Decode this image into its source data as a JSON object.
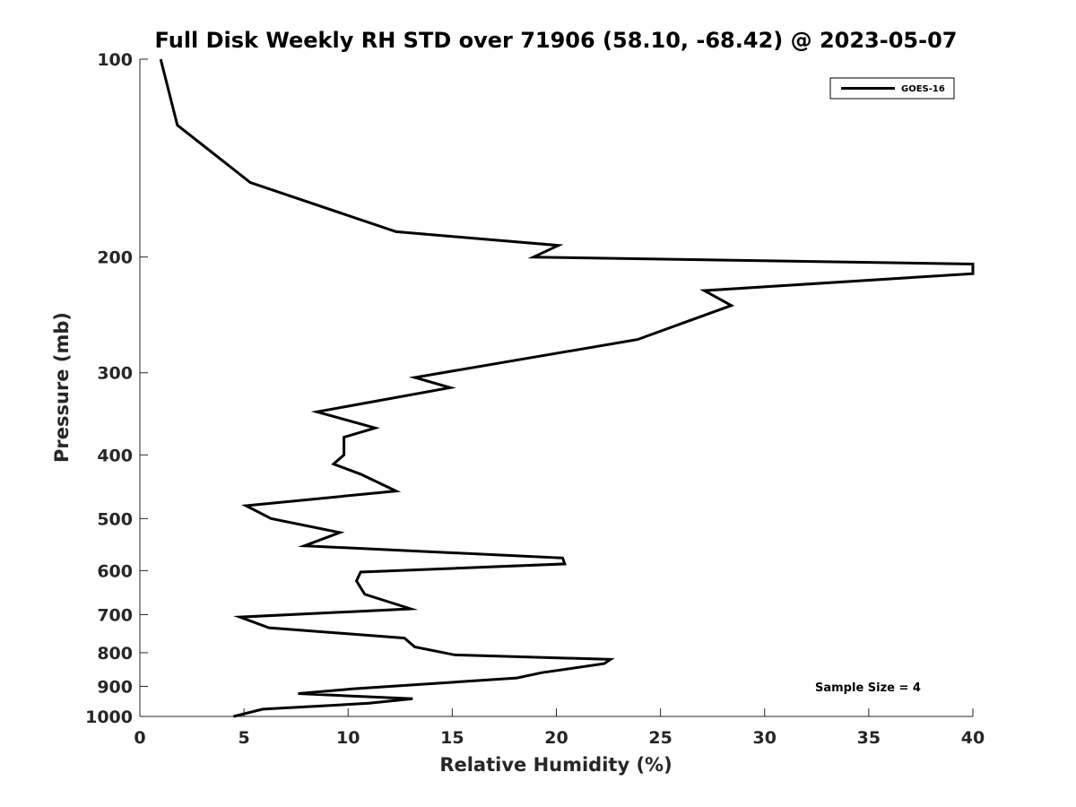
{
  "chart_data": {
    "type": "line",
    "title": "Full Disk Weekly RH STD over 71906 (58.10, -68.42) @ 2023-05-07",
    "xlabel": "Relative Humidity (%)",
    "ylabel": "Pressure (mb)",
    "xlim": [
      0,
      40
    ],
    "ylim": [
      100,
      1000
    ],
    "y_scale": "log",
    "y_reversed": true,
    "grid": false,
    "legend_position": "top-right",
    "x_ticks": [
      0,
      5,
      10,
      15,
      20,
      25,
      30,
      35,
      40
    ],
    "y_ticks": [
      100,
      200,
      300,
      400,
      500,
      600,
      700,
      800,
      900,
      1000
    ],
    "annotation": "Sample Size = 4",
    "series": [
      {
        "name": "GOES-16",
        "color": "#000000",
        "points": [
          [
            1.0,
            100
          ],
          [
            1.8,
            126
          ],
          [
            5.3,
            154
          ],
          [
            12.3,
            183
          ],
          [
            20.1,
            192
          ],
          [
            18.9,
            200
          ],
          [
            40.0,
            205
          ],
          [
            40.0,
            212
          ],
          [
            27.1,
            225
          ],
          [
            28.4,
            237
          ],
          [
            23.9,
            267
          ],
          [
            13.2,
            305
          ],
          [
            14.9,
            316
          ],
          [
            8.5,
            344
          ],
          [
            11.3,
            364
          ],
          [
            9.8,
            376
          ],
          [
            9.8,
            400
          ],
          [
            9.3,
            413
          ],
          [
            10.6,
            428
          ],
          [
            12.3,
            454
          ],
          [
            5.1,
            478
          ],
          [
            6.3,
            500
          ],
          [
            9.6,
            525
          ],
          [
            7.9,
            550
          ],
          [
            20.3,
            574
          ],
          [
            20.4,
            586
          ],
          [
            10.6,
            603
          ],
          [
            10.4,
            622
          ],
          [
            10.8,
            652
          ],
          [
            13.0,
            686
          ],
          [
            4.8,
            706
          ],
          [
            6.2,
            733
          ],
          [
            12.7,
            760
          ],
          [
            13.2,
            784
          ],
          [
            15.1,
            806
          ],
          [
            22.6,
            819
          ],
          [
            22.3,
            831
          ],
          [
            19.3,
            858
          ],
          [
            18.1,
            874
          ],
          [
            10.2,
            908
          ],
          [
            7.6,
            923
          ],
          [
            13.1,
            940
          ],
          [
            11.0,
            955
          ],
          [
            5.9,
            975
          ],
          [
            4.5,
            1000
          ]
        ]
      }
    ]
  }
}
